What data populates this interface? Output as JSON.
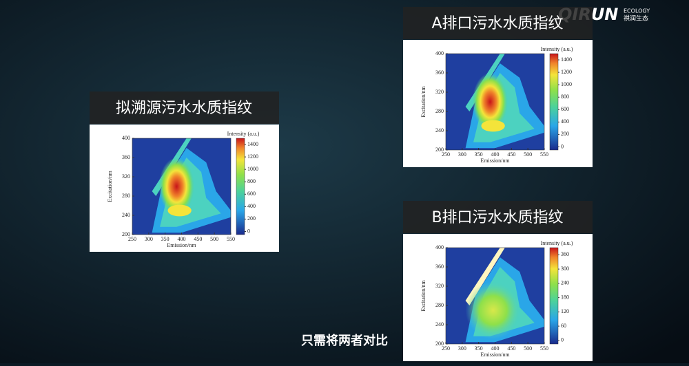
{
  "logo": {
    "name": "QIRUN",
    "tag1": "ECOLOGY",
    "tag2": "祺润生态"
  },
  "subtitle": "只需将两者对比",
  "chart_data": [
    {
      "type": "contour",
      "title": "拟溯源污水水质指纹",
      "xlabel": "Emission/nm",
      "ylabel": "Excitation/nm",
      "colorbar_label": "Intensity (a.u.)",
      "xlim": [
        250,
        550
      ],
      "xticks": [
        250,
        300,
        350,
        400,
        450,
        500,
        550
      ],
      "ylim": [
        200,
        400
      ],
      "yticks": [
        200,
        240,
        280,
        320,
        360,
        400
      ],
      "clim": [
        -50,
        1500
      ],
      "cticks": [
        0,
        200,
        400,
        600,
        800,
        1000,
        1200,
        1400
      ]
    },
    {
      "type": "contour",
      "title": "A排口污水水质指纹",
      "xlabel": "Emission/nm",
      "ylabel": "Excitation/nm",
      "colorbar_label": "Intensity (a.u.)",
      "xlim": [
        250,
        550
      ],
      "xticks": [
        250,
        300,
        350,
        400,
        450,
        500,
        550
      ],
      "ylim": [
        200,
        400
      ],
      "yticks": [
        200,
        240,
        280,
        320,
        360,
        400
      ],
      "clim": [
        -50,
        1500
      ],
      "cticks": [
        0,
        200,
        400,
        600,
        800,
        1000,
        1200,
        1400
      ]
    },
    {
      "type": "contour",
      "title": "B排口污水水质指纹",
      "xlabel": "Emission/nm",
      "ylabel": "Excitation/nm",
      "colorbar_label": "Intensity (a.u.)",
      "xlim": [
        250,
        550
      ],
      "xticks": [
        250,
        300,
        350,
        400,
        450,
        500,
        550
      ],
      "ylim": [
        200,
        400
      ],
      "yticks": [
        200,
        240,
        280,
        320,
        360,
        400
      ],
      "clim": [
        -15,
        390
      ],
      "cticks": [
        0,
        60,
        120,
        180,
        240,
        300,
        360
      ]
    }
  ]
}
